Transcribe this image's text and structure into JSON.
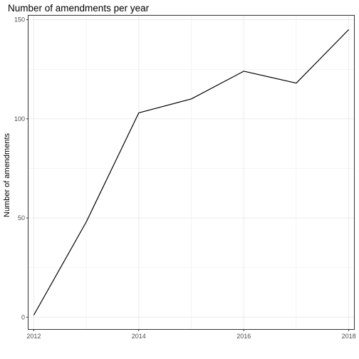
{
  "chart_data": {
    "type": "line",
    "title": "Number of amendments per year",
    "xlabel": "",
    "ylabel": "Number of amendments",
    "x": [
      2012,
      2013,
      2014,
      2015,
      2016,
      2017,
      2018
    ],
    "series": [
      {
        "values": [
          1,
          48,
          103,
          110,
          124,
          118,
          145
        ]
      }
    ],
    "xlim": [
      2011.9,
      2018.1
    ],
    "ylim": [
      -6,
      152
    ],
    "x_ticks": [
      2012,
      2014,
      2016,
      2018
    ],
    "y_ticks": [
      0,
      50,
      100,
      150
    ],
    "grid": true,
    "line_color": "#000000",
    "grid_color": "#ebebeb",
    "panel_border_color": "#333333"
  }
}
